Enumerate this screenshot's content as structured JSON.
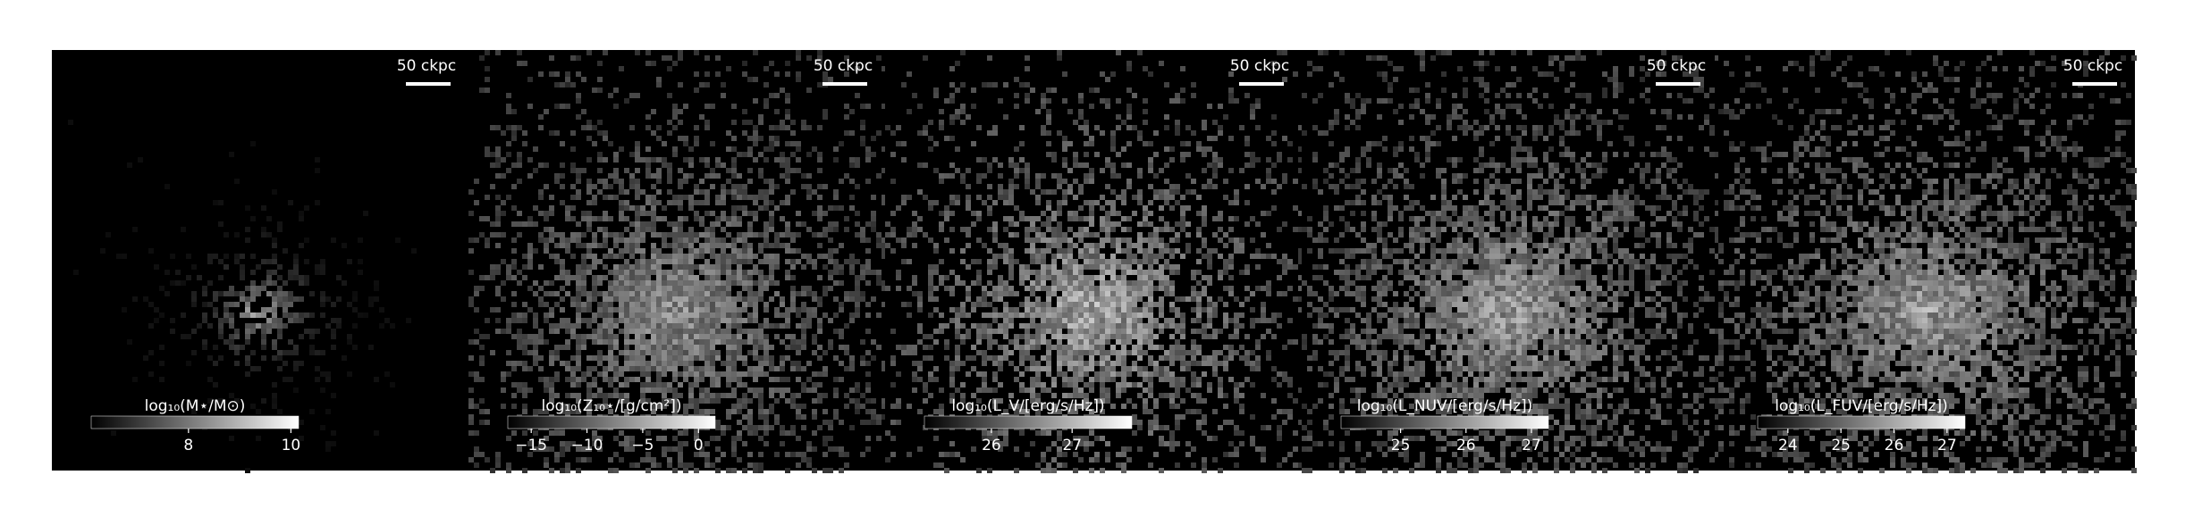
{
  "panels": [
    {
      "scale_bar": "50 ckpc",
      "colorbar": {
        "label": "log₁₀(M⋆/M⊙)",
        "range": [
          6.1,
          10.15
        ],
        "ticks": [
          8,
          10
        ]
      }
    },
    {
      "scale_bar": "50 ckpc",
      "colorbar": {
        "label": "log₁₀(Z₁₀⋆/[g/cm²])",
        "range": [
          -17.1,
          1.5
        ],
        "ticks": [
          {
            "value": -15,
            "label": "−15"
          },
          {
            "value": -10,
            "label": "−10"
          },
          {
            "value": -5,
            "label": "−5"
          },
          0
        ]
      }
    },
    {
      "scale_bar": "50 ckpc",
      "colorbar": {
        "label": "log₁₀(L_V/[erg/s/Hz])",
        "range": [
          25.17,
          27.74
        ],
        "ticks": [
          26,
          27
        ]
      }
    },
    {
      "scale_bar": "50 ckpc",
      "colorbar": {
        "label": "log₁₀(L_NUV/[erg/s/Hz])",
        "range": [
          24.09,
          27.26
        ],
        "ticks": [
          25,
          26,
          27
        ]
      }
    },
    {
      "scale_bar": "50 ckpc",
      "colorbar": {
        "label": "log₁₀(L_FUV/[erg/s/Hz])",
        "range": [
          23.43,
          27.34
        ],
        "ticks": [
          24,
          25,
          26,
          27
        ]
      }
    }
  ]
}
